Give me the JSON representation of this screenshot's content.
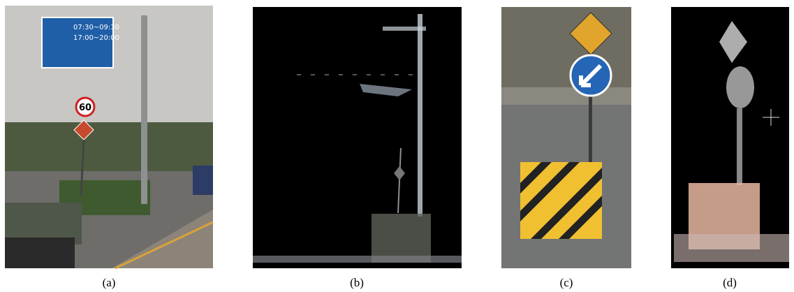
{
  "panels": [
    {
      "caption": "(a)",
      "sign_texts": [
        "07:30~09:30",
        "17:00~20:00",
        "60"
      ]
    },
    {
      "caption": "(b)"
    },
    {
      "caption": "(c)"
    },
    {
      "caption": "(d)"
    }
  ]
}
